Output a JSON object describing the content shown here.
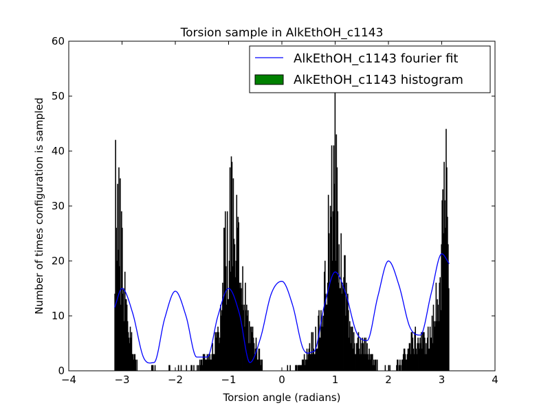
{
  "chart_data": {
    "type": "bar",
    "title": "Torsion sample in AlkEthOH_c1143",
    "xlabel": "Torsion angle (radians)",
    "ylabel": "Number of times configuration is sampled",
    "xlim": [
      -4,
      4
    ],
    "ylim": [
      0,
      60
    ],
    "x_ticks": [
      -4,
      -3,
      -2,
      -1,
      0,
      1,
      2,
      3,
      4
    ],
    "y_ticks": [
      0,
      10,
      20,
      30,
      40,
      50,
      60
    ],
    "x_tick_labels": [
      "−4",
      "−3",
      "−2",
      "−1",
      "0",
      "1",
      "2",
      "3",
      "4"
    ],
    "y_tick_labels": [
      "0",
      "10",
      "20",
      "30",
      "40",
      "50",
      "60"
    ],
    "grid": false,
    "legend_position": "top-right",
    "legend": [
      {
        "label": "AlkEthOH_c1143 fourier fit",
        "kind": "line",
        "color": "#0000ff"
      },
      {
        "label": "AlkEthOH_c1143 histogram",
        "kind": "patch",
        "color": "#008000"
      }
    ],
    "histogram": {
      "name": "AlkEthOH_c1143 histogram",
      "color": "#000000",
      "x_range": [
        -3.14,
        3.14
      ],
      "approx_peaks": [
        {
          "x": -3.12,
          "y": 42
        },
        {
          "x": -0.95,
          "y": 39
        },
        {
          "x": 1.0,
          "y": 51
        },
        {
          "x": 3.08,
          "y": 44
        }
      ]
    },
    "fourier_fit": {
      "name": "AlkEthOH_c1143 fourier fit",
      "color": "#0000ff",
      "x": [
        -3.14,
        -3.0,
        -2.8,
        -2.6,
        -2.4,
        -2.2,
        -2.0,
        -1.8,
        -1.6,
        -1.4,
        -1.2,
        -1.0,
        -0.8,
        -0.6,
        -0.4,
        -0.2,
        0.0,
        0.2,
        0.4,
        0.6,
        0.8,
        1.0,
        1.2,
        1.4,
        1.6,
        1.8,
        2.0,
        2.2,
        2.4,
        2.6,
        2.8,
        3.0,
        3.14
      ],
      "y": [
        11.5,
        15.0,
        10.5,
        2.5,
        1.5,
        9.5,
        14.5,
        10.0,
        2.5,
        2.5,
        10.0,
        15.0,
        10.5,
        1.5,
        6.0,
        14.0,
        16.3,
        12.0,
        4.0,
        3.5,
        12.0,
        18.0,
        14.0,
        7.0,
        5.5,
        13.5,
        20.0,
        15.5,
        8.0,
        6.5,
        14.0,
        21.3,
        19.5
      ]
    }
  }
}
